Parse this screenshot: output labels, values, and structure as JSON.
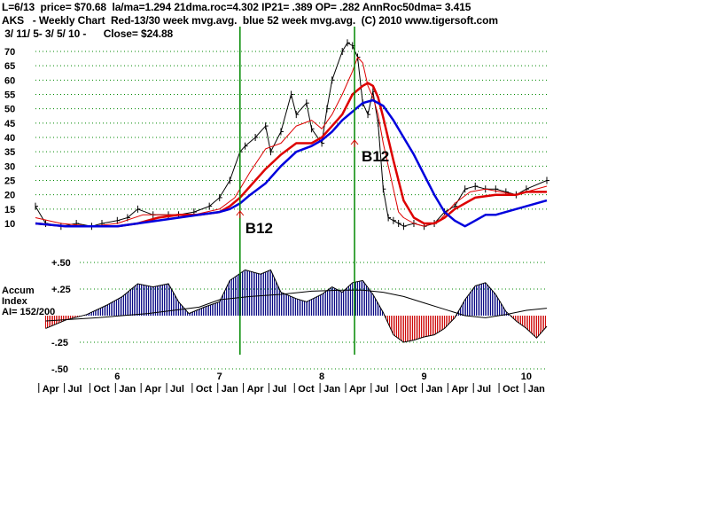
{
  "header": {
    "line1": "L=6/13  price= $70.68  la/ma=1.294 21dma.roc=4.302 IP21= .389 OP= .282 AnnRoc50dma= 3.415",
    "line2": "AKS   - Weekly Chart  Red-13/30 week mvg.avg.  blue 52 week mvg.avg.  (C) 2010 www.tigersoft.com",
    "line3": " 3/ 11/ 5- 3/ 5/ 10 -      Close= $24.88"
  },
  "side_label": {
    "line1": "Accum",
    "line2": "Index",
    "line3": "AI= 152/200"
  },
  "signals": [
    {
      "label": "B12",
      "x": 2007.2
    },
    {
      "label": "B12",
      "x": 2008.32
    }
  ],
  "colors": {
    "price": "#000000",
    "ma_red": "#dd0000",
    "ma_blue": "#0000dd",
    "grid": "#008800",
    "acc_pos": "#000080",
    "acc_neg": "#cc0000"
  },
  "chart_data": [
    {
      "type": "line",
      "name": "price",
      "ylim": [
        0,
        75
      ],
      "xlim": [
        2005.2,
        2010.2
      ],
      "y_ticks": [
        10,
        15,
        20,
        25,
        30,
        35,
        40,
        45,
        50,
        55,
        60,
        65,
        70
      ],
      "year_ticks": [
        {
          "label": "6",
          "x": 2006
        },
        {
          "label": "7",
          "x": 2007
        },
        {
          "label": "8",
          "x": 2008
        },
        {
          "label": "9",
          "x": 2009
        },
        {
          "label": "10",
          "x": 2010
        }
      ],
      "month_ticks": [
        {
          "label": "Apr",
          "x": 2005.25
        },
        {
          "label": "Jul",
          "x": 2005.5
        },
        {
          "label": "Oct",
          "x": 2005.75
        },
        {
          "label": "Jan",
          "x": 2006.0
        },
        {
          "label": "Apr",
          "x": 2006.25
        },
        {
          "label": "Jul",
          "x": 2006.5
        },
        {
          "label": "Oct",
          "x": 2006.75
        },
        {
          "label": "Jan",
          "x": 2007.0
        },
        {
          "label": "Apr",
          "x": 2007.25
        },
        {
          "label": "Jul",
          "x": 2007.5
        },
        {
          "label": "Oct",
          "x": 2007.75
        },
        {
          "label": "Jan",
          "x": 2008.0
        },
        {
          "label": "Apr",
          "x": 2008.25
        },
        {
          "label": "Jul",
          "x": 2008.5
        },
        {
          "label": "Oct",
          "x": 2008.75
        },
        {
          "label": "Jan",
          "x": 2009.0
        },
        {
          "label": "Apr",
          "x": 2009.25
        },
        {
          "label": "Jul",
          "x": 2009.5
        },
        {
          "label": "Oct",
          "x": 2009.75
        },
        {
          "label": "Jan",
          "x": 2010.0
        }
      ],
      "series": [
        {
          "name": "price",
          "x": [
            2005.2,
            2005.3,
            2005.45,
            2005.6,
            2005.75,
            2005.85,
            2006.0,
            2006.1,
            2006.2,
            2006.35,
            2006.5,
            2006.6,
            2006.75,
            2006.9,
            2007.0,
            2007.1,
            2007.2,
            2007.25,
            2007.35,
            2007.45,
            2007.5,
            2007.6,
            2007.7,
            2007.75,
            2007.85,
            2007.9,
            2008.0,
            2008.05,
            2008.1,
            2008.2,
            2008.25,
            2008.3,
            2008.35,
            2008.4,
            2008.45,
            2008.5,
            2008.55,
            2008.6,
            2008.65,
            2008.7,
            2008.75,
            2008.8,
            2008.9,
            2009.0,
            2009.1,
            2009.2,
            2009.3,
            2009.4,
            2009.5,
            2009.6,
            2009.7,
            2009.8,
            2009.9,
            2010.0,
            2010.2
          ],
          "y": [
            16,
            10,
            9,
            10,
            9,
            10,
            11,
            12,
            15,
            13,
            13,
            13,
            14,
            16,
            19,
            25,
            35,
            37,
            40,
            44,
            35,
            42,
            55,
            48,
            52,
            43,
            38,
            50,
            60,
            70,
            73,
            72,
            68,
            52,
            48,
            56,
            45,
            22,
            12,
            11,
            10,
            9,
            10,
            9,
            10,
            14,
            16,
            22,
            23,
            22,
            22,
            21,
            20,
            22,
            25
          ]
        },
        {
          "name": "13 week mvg.avg.",
          "x": [
            2005.2,
            2005.45,
            2005.75,
            2006.0,
            2006.25,
            2006.5,
            2006.75,
            2007.0,
            2007.15,
            2007.3,
            2007.45,
            2007.6,
            2007.75,
            2007.9,
            2008.0,
            2008.1,
            2008.2,
            2008.3,
            2008.35,
            2008.4,
            2008.45,
            2008.5,
            2008.55,
            2008.6,
            2008.7,
            2008.75,
            2008.8,
            2008.9,
            2009.0,
            2009.15,
            2009.3,
            2009.45,
            2009.6,
            2009.75,
            2009.9,
            2010.0,
            2010.2
          ],
          "y": [
            12,
            10,
            9,
            10,
            13,
            13,
            13,
            15,
            19,
            28,
            36,
            38,
            44,
            46,
            43,
            48,
            55,
            63,
            68,
            66,
            58,
            54,
            48,
            38,
            22,
            14,
            12,
            10,
            9,
            11,
            17,
            21,
            22,
            21,
            20,
            21,
            23
          ]
        },
        {
          "name": "30 week mvg.avg.",
          "x": [
            2005.2,
            2005.5,
            2005.8,
            2006.0,
            2006.2,
            2006.4,
            2006.6,
            2006.8,
            2007.0,
            2007.1,
            2007.2,
            2007.3,
            2007.45,
            2007.6,
            2007.75,
            2007.9,
            2008.0,
            2008.1,
            2008.2,
            2008.3,
            2008.4,
            2008.45,
            2008.5,
            2008.55,
            2008.6,
            2008.7,
            2008.8,
            2008.9,
            2009.0,
            2009.1,
            2009.2,
            2009.3,
            2009.5,
            2009.7,
            2009.9,
            2010.0,
            2010.2
          ],
          "y": [
            10,
            9,
            9,
            9,
            10,
            12,
            13,
            13,
            14,
            16,
            19,
            23,
            29,
            34,
            38,
            38,
            40,
            44,
            48,
            55,
            58,
            59,
            58,
            54,
            47,
            32,
            18,
            12,
            10,
            10,
            12,
            15,
            19,
            20,
            20,
            21,
            21
          ]
        },
        {
          "name": "52 week mvg.avg.",
          "x": [
            2005.2,
            2005.5,
            2005.8,
            2006.0,
            2006.2,
            2006.4,
            2006.6,
            2006.8,
            2007.0,
            2007.1,
            2007.2,
            2007.3,
            2007.45,
            2007.6,
            2007.75,
            2007.9,
            2008.0,
            2008.1,
            2008.2,
            2008.3,
            2008.4,
            2008.5,
            2008.6,
            2008.7,
            2008.8,
            2008.9,
            2009.0,
            2009.1,
            2009.2,
            2009.3,
            2009.4,
            2009.5,
            2009.6,
            2009.7,
            2009.8,
            2010.0,
            2010.2
          ],
          "y": [
            10,
            9,
            9,
            9,
            10,
            11,
            12,
            13,
            14,
            15,
            17,
            20,
            24,
            30,
            35,
            37,
            39,
            42,
            46,
            49,
            52,
            53,
            51,
            46,
            40,
            34,
            27,
            20,
            14,
            11,
            9,
            11,
            13,
            13,
            14,
            16,
            18
          ]
        }
      ]
    },
    {
      "type": "bar",
      "name": "Accum Index",
      "ylim": [
        -0.5,
        0.5
      ],
      "y_ticks": [
        {
          "label": "+.50",
          "value": 0.5
        },
        {
          "label": "+.25",
          "value": 0.25
        },
        {
          "label": "-.25",
          "value": -0.25
        },
        {
          "label": "-.50",
          "value": -0.5
        }
      ],
      "series": [
        {
          "name": "Accum Index",
          "x": [
            2005.3,
            2005.5,
            2005.7,
            2005.9,
            2006.05,
            2006.2,
            2006.35,
            2006.5,
            2006.6,
            2006.7,
            2006.85,
            2007.0,
            2007.1,
            2007.25,
            2007.4,
            2007.5,
            2007.6,
            2007.75,
            2007.85,
            2008.0,
            2008.1,
            2008.2,
            2008.3,
            2008.4,
            2008.5,
            2008.6,
            2008.7,
            2008.8,
            2008.9,
            2009.0,
            2009.1,
            2009.2,
            2009.3,
            2009.4,
            2009.5,
            2009.6,
            2009.7,
            2009.8,
            2009.9,
            2010.0,
            2010.1,
            2010.2
          ],
          "y": [
            -0.12,
            -0.04,
            0.01,
            0.1,
            0.18,
            0.3,
            0.27,
            0.3,
            0.13,
            0.02,
            0.08,
            0.13,
            0.33,
            0.43,
            0.39,
            0.43,
            0.22,
            0.16,
            0.13,
            0.2,
            0.27,
            0.22,
            0.31,
            0.33,
            0.2,
            0.03,
            -0.18,
            -0.25,
            -0.23,
            -0.2,
            -0.18,
            -0.12,
            -0.02,
            0.15,
            0.28,
            0.31,
            0.2,
            0.04,
            -0.05,
            -0.12,
            -0.21,
            -0.1
          ]
        },
        {
          "name": "moving average",
          "x": [
            2005.3,
            2005.8,
            2006.3,
            2006.8,
            2007.0,
            2007.3,
            2007.6,
            2007.9,
            2008.2,
            2008.4,
            2008.6,
            2008.8,
            2009.0,
            2009.2,
            2009.4,
            2009.6,
            2009.8,
            2010.0,
            2010.2
          ],
          "y": [
            -0.05,
            -0.02,
            0.02,
            0.08,
            0.15,
            0.18,
            0.2,
            0.23,
            0.24,
            0.24,
            0.22,
            0.18,
            0.12,
            0.06,
            0.0,
            -0.02,
            0.01,
            0.05,
            0.07
          ]
        }
      ]
    }
  ]
}
